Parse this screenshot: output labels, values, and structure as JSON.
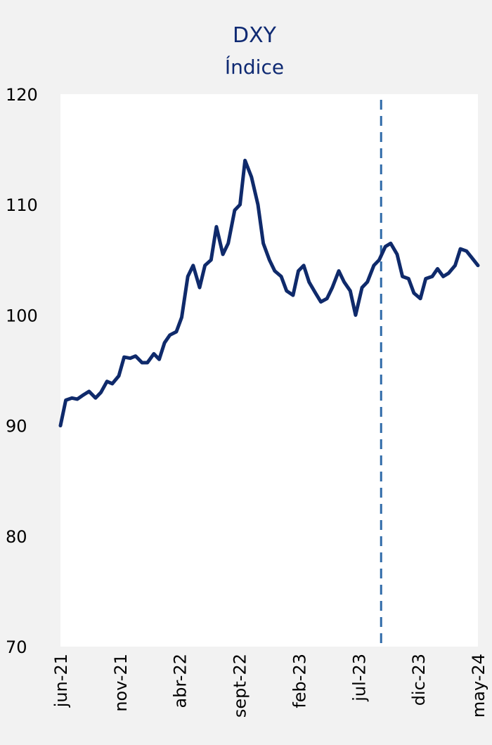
{
  "chart_data": {
    "type": "line",
    "title": "DXY",
    "subtitle": "Índice",
    "xlabel": "",
    "ylabel": "",
    "ylim": [
      70,
      120
    ],
    "y_ticks": [
      "120",
      "110",
      "100",
      "90",
      "80",
      "70"
    ],
    "x_tick_labels": [
      "jun-21",
      "nov-21",
      "abr-22",
      "sept-22",
      "feb-23",
      "jul-23",
      "dic-23",
      "may-24"
    ],
    "x_range": [
      "2021-06-01",
      "2024-05-31"
    ],
    "reference_line": {
      "x": "2023-09-20",
      "style": "dashed",
      "color": "#2e6aa8"
    },
    "colors": {
      "line": "#0f2a6b",
      "background": "#f2f2f2",
      "plot_area": "#ffffff",
      "title": "#0f2a73"
    },
    "grid": false,
    "legend": "none",
    "series": [
      {
        "x": [
          "2021-06-01",
          "2021-06-15",
          "2021-07-01",
          "2021-07-15",
          "2021-08-01",
          "2021-08-15",
          "2021-09-01",
          "2021-09-15",
          "2021-10-01",
          "2021-10-15",
          "2021-11-01",
          "2021-11-15",
          "2021-12-01",
          "2021-12-15",
          "2022-01-01",
          "2022-01-15",
          "2022-02-01",
          "2022-02-15",
          "2022-03-01",
          "2022-03-15",
          "2022-04-01",
          "2022-04-15",
          "2022-05-01",
          "2022-05-15",
          "2022-06-01",
          "2022-06-15",
          "2022-07-01",
          "2022-07-15",
          "2022-08-01",
          "2022-08-15",
          "2022-09-01",
          "2022-09-15",
          "2022-09-28",
          "2022-10-15",
          "2022-11-01",
          "2022-11-15",
          "2022-12-01",
          "2022-12-15",
          "2023-01-01",
          "2023-01-15",
          "2023-02-01",
          "2023-02-15",
          "2023-03-01",
          "2023-03-15",
          "2023-04-01",
          "2023-04-15",
          "2023-05-01",
          "2023-05-15",
          "2023-06-01",
          "2023-06-15",
          "2023-07-01",
          "2023-07-15",
          "2023-08-01",
          "2023-08-15",
          "2023-09-01",
          "2023-09-15",
          "2023-10-01",
          "2023-10-15",
          "2023-11-01",
          "2023-11-15",
          "2023-12-01",
          "2023-12-15",
          "2024-01-01",
          "2024-01-15",
          "2024-02-01",
          "2024-02-15",
          "2024-03-01",
          "2024-03-15",
          "2024-04-01",
          "2024-04-15",
          "2024-05-01",
          "2024-05-15",
          "2024-05-31"
        ],
        "values": [
          90.0,
          92.3,
          92.5,
          92.4,
          92.8,
          93.1,
          92.5,
          93.0,
          94.0,
          93.8,
          94.5,
          96.2,
          96.1,
          96.3,
          95.7,
          95.7,
          96.5,
          96.0,
          97.5,
          98.2,
          98.5,
          99.8,
          103.5,
          104.5,
          102.5,
          104.5,
          105.0,
          108.0,
          105.5,
          106.5,
          109.5,
          110.0,
          114.0,
          112.5,
          110.0,
          106.5,
          105.0,
          104.0,
          103.5,
          102.2,
          101.8,
          104.0,
          104.5,
          103.0,
          102.0,
          101.2,
          101.5,
          102.5,
          104.0,
          103.0,
          102.2,
          100.0,
          102.5,
          103.0,
          104.5,
          105.0,
          106.2,
          106.5,
          105.5,
          103.5,
          103.3,
          102.0,
          101.5,
          103.3,
          103.5,
          104.2,
          103.5,
          103.8,
          104.5,
          106.0,
          105.8,
          105.2,
          104.5
        ]
      }
    ]
  }
}
